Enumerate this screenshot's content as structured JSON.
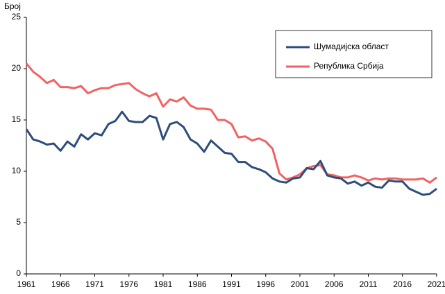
{
  "chart_data": {
    "type": "line",
    "y_label": "Број",
    "x": [
      1961,
      1962,
      1963,
      1964,
      1965,
      1966,
      1967,
      1968,
      1969,
      1970,
      1971,
      1972,
      1973,
      1974,
      1975,
      1976,
      1977,
      1978,
      1979,
      1980,
      1981,
      1982,
      1983,
      1984,
      1985,
      1986,
      1987,
      1988,
      1989,
      1990,
      1991,
      1992,
      1993,
      1994,
      1995,
      1996,
      1997,
      1998,
      1999,
      2000,
      2001,
      2002,
      2003,
      2004,
      2005,
      2006,
      2007,
      2008,
      2009,
      2010,
      2011,
      2012,
      2013,
      2014,
      2015,
      2016,
      2017,
      2018,
      2019,
      2020,
      2021
    ],
    "series": [
      {
        "name": "Шумадијска област",
        "color": "#2e4d7b",
        "values": [
          14.1,
          13.1,
          12.9,
          12.6,
          12.7,
          12.0,
          12.9,
          12.4,
          13.6,
          13.1,
          13.7,
          13.5,
          14.6,
          14.9,
          15.8,
          14.9,
          14.8,
          14.8,
          15.4,
          15.2,
          13.1,
          14.6,
          14.8,
          14.3,
          13.1,
          12.7,
          11.9,
          13.0,
          12.4,
          11.8,
          11.7,
          10.9,
          10.9,
          10.4,
          10.2,
          9.9,
          9.3,
          9.0,
          8.9,
          9.3,
          9.4,
          10.3,
          10.2,
          11.0,
          9.6,
          9.4,
          9.3,
          8.8,
          9.0,
          8.6,
          8.9,
          8.5,
          8.4,
          9.1,
          9.0,
          9.0,
          8.3,
          8.0,
          7.7,
          7.8,
          8.3
        ]
      },
      {
        "name": "Република Србија",
        "color": "#f26262",
        "values": [
          20.5,
          19.7,
          19.2,
          18.6,
          18.9,
          18.2,
          18.2,
          18.1,
          18.3,
          17.6,
          17.9,
          18.1,
          18.1,
          18.4,
          18.5,
          18.6,
          18.0,
          17.6,
          17.3,
          17.6,
          16.3,
          17.0,
          16.8,
          17.2,
          16.4,
          16.1,
          16.1,
          16.0,
          15.0,
          15.0,
          14.6,
          13.3,
          13.4,
          13.0,
          13.2,
          12.9,
          12.2,
          9.8,
          9.2,
          9.4,
          9.7,
          10.3,
          10.5,
          10.6,
          9.7,
          9.6,
          9.4,
          9.4,
          9.6,
          9.4,
          9.1,
          9.3,
          9.2,
          9.3,
          9.3,
          9.2,
          9.2,
          9.2,
          9.3,
          8.9,
          9.4
        ]
      }
    ],
    "xlim": [
      1961,
      2021
    ],
    "xticks": [
      1961,
      1966,
      1971,
      1976,
      1981,
      1986,
      1991,
      1996,
      2001,
      2006,
      2011,
      2016,
      2021
    ],
    "ylim": [
      0,
      25
    ],
    "yticks": [
      0,
      5,
      10,
      15,
      20,
      25
    ],
    "grid": false,
    "legend": "upper right"
  }
}
